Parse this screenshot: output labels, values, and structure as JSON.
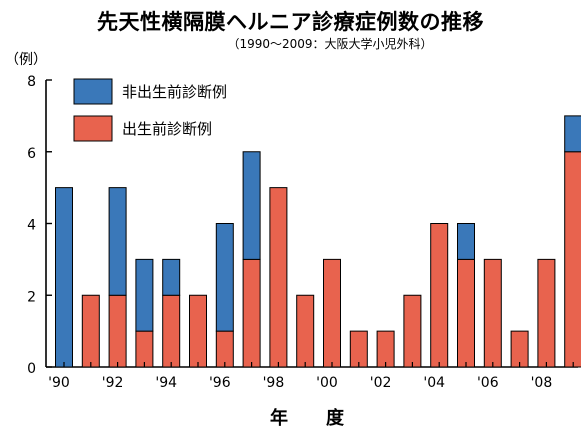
{
  "chart_data": {
    "type": "bar",
    "stacked": true,
    "title": "先天性横隔膜ヘルニア診療症例数の推移",
    "subtitle": "（1990～2009：大阪大学小児外科）",
    "ylabel": "（例）",
    "xlabel": "年　度",
    "ylim": [
      0,
      8
    ],
    "yticks": [
      0,
      2,
      4,
      6,
      8
    ],
    "categories": [
      "1990",
      "1991",
      "1992",
      "1993",
      "1994",
      "1995",
      "1996",
      "1997",
      "1998",
      "1999",
      "2000",
      "2001",
      "2002",
      "2003",
      "2004",
      "2005",
      "2006",
      "2007",
      "2008",
      "2009"
    ],
    "xtick_labels": [
      "'90",
      "",
      "'92",
      "",
      "'94",
      "",
      "'96",
      "",
      "'98",
      "",
      "'00",
      "",
      "'02",
      "",
      "'04",
      "",
      "'06",
      "",
      "'08",
      ""
    ],
    "series": [
      {
        "name": "出生前診断例",
        "color": "#e8634e",
        "values": [
          0,
          2,
          2,
          1,
          2,
          2,
          1,
          3,
          5,
          2,
          3,
          1,
          1,
          2,
          4,
          3,
          3,
          1,
          3,
          6
        ]
      },
      {
        "name": "非出生前診断例",
        "color": "#3a78b9",
        "values": [
          5,
          0,
          3,
          2,
          1,
          0,
          3,
          3,
          0,
          0,
          0,
          0,
          0,
          0,
          0,
          1,
          0,
          0,
          0,
          1
        ]
      }
    ],
    "legend": [
      "非出生前診断例",
      "出生前診断例"
    ],
    "legend_position": "top-left",
    "grid": false
  }
}
